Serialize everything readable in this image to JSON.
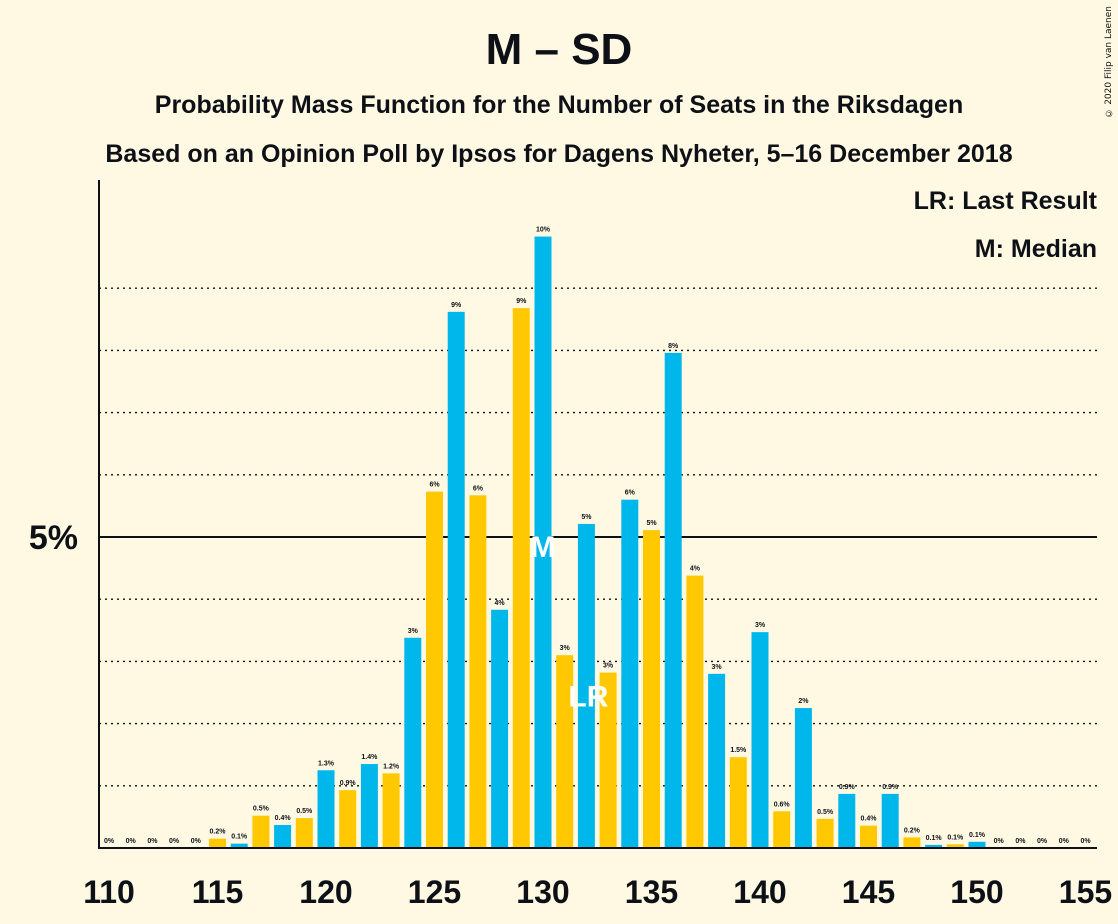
{
  "credit": "© 2020 Filip van Laenen",
  "colors": {
    "background": "#FFF9E3",
    "blue": "#00B7EB",
    "yellow": "#FFC800",
    "text": "#0D1117"
  },
  "chart_data": {
    "type": "bar",
    "title": "M – SD",
    "subtitle": "Probability Mass Function for the Number of Seats in the Riksdagen",
    "subtitle2": "Based on an Opinion Poll by Ipsos for Dagens Nyheter, 5–16 December 2018",
    "legend": [
      "LR: Last Result",
      "M: Median"
    ],
    "legend_position": "top-right",
    "ylim": [
      0,
      10
    ],
    "y_ticks": [
      {
        "value": 5,
        "label": "5%"
      }
    ],
    "x_ticks": [
      110,
      115,
      120,
      125,
      130,
      135,
      140,
      145,
      150,
      155
    ],
    "median": 130,
    "median_label": "M",
    "last_result": 132,
    "last_result_label": "LR",
    "seats": [
      110,
      111,
      112,
      113,
      114,
      115,
      116,
      117,
      118,
      119,
      120,
      121,
      122,
      123,
      124,
      125,
      126,
      127,
      128,
      129,
      130,
      131,
      132,
      133,
      134,
      135,
      136,
      137,
      138,
      139,
      140,
      141,
      142,
      143,
      144,
      145,
      146,
      147,
      148,
      149,
      150,
      151,
      152,
      153,
      154,
      155
    ],
    "values": [
      0,
      0,
      0,
      0,
      0,
      0.15,
      0.07,
      0.52,
      0.37,
      0.48,
      1.25,
      0.93,
      1.35,
      1.2,
      3.38,
      5.73,
      8.62,
      5.67,
      3.83,
      8.68,
      9.83,
      3.1,
      5.21,
      2.82,
      5.6,
      5.11,
      7.96,
      4.38,
      2.8,
      1.46,
      3.47,
      0.59,
      2.25,
      0.47,
      0.87,
      0.36,
      0.87,
      0.17,
      0.05,
      0.06,
      0.1,
      0,
      0,
      0,
      0,
      0
    ],
    "labels": [
      "0%",
      "0%",
      "0%",
      "0%",
      "0%",
      "0.2%",
      "0.1%",
      "0.5%",
      "0.4%",
      "0.5%",
      "1.3%",
      "0.9%",
      "1.4%",
      "1.2%",
      "3%",
      "6%",
      "9%",
      "6%",
      "4%",
      "9%",
      "10%",
      "3%",
      "5%",
      "3%",
      "6%",
      "5%",
      "8%",
      "4%",
      "3%",
      "1.5%",
      "3%",
      "0.6%",
      "2%",
      "0.5%",
      "0.9%",
      "0.4%",
      "0.9%",
      "0.2%",
      "0.1%",
      "0.1%",
      "0.1%",
      "0%",
      "0%",
      "0%",
      "0%",
      "0%"
    ]
  }
}
